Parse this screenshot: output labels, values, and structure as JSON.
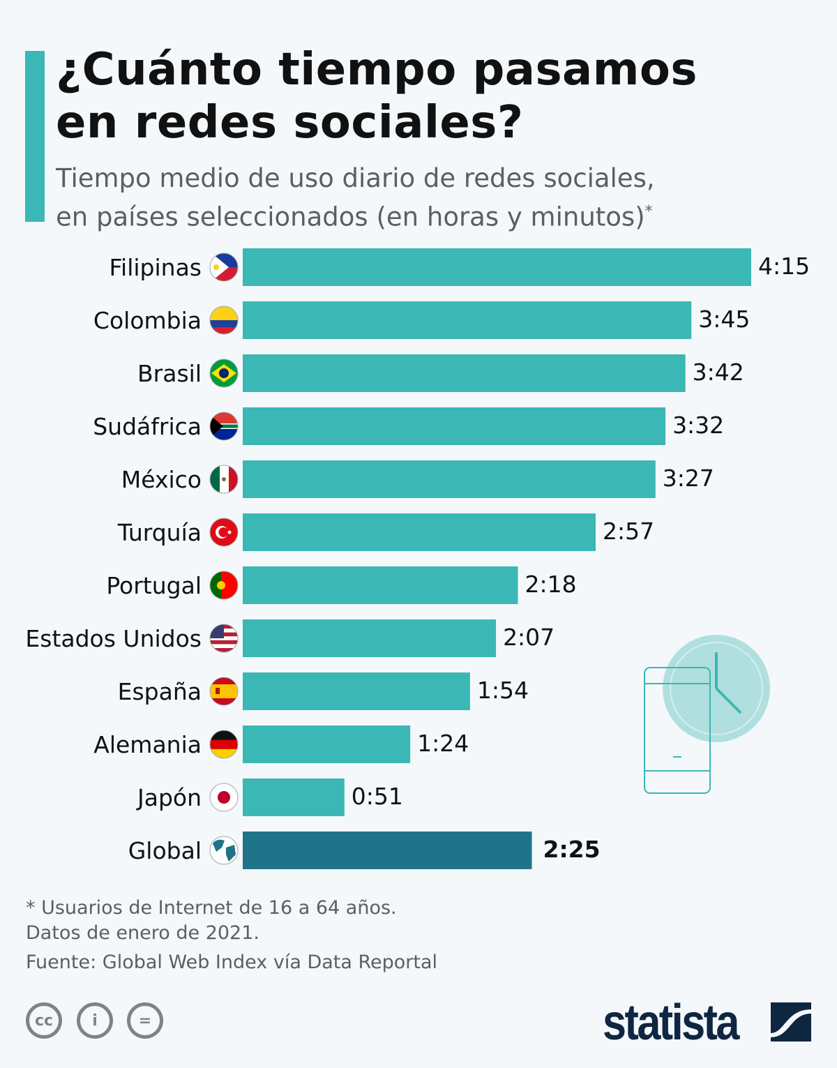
{
  "header": {
    "title_line1": "¿Cuánto tiempo pasamos",
    "title_line2": "en redes sociales?",
    "subtitle_line1": "Tiempo medio de uso diario de redes sociales,",
    "subtitle_line2": "en países seleccionados (en horas y minutos)",
    "subtitle_mark": "*"
  },
  "chart_data": {
    "type": "bar",
    "orientation": "horizontal",
    "unit": "horas:minutos",
    "categories": [
      "Filipinas",
      "Colombia",
      "Brasil",
      "Sudáfrica",
      "México",
      "Turquía",
      "Portugal",
      "Estados Unidos",
      "España",
      "Alemania",
      "Japón",
      "Global"
    ],
    "labels": [
      "4:15",
      "3:45",
      "3:42",
      "3:32",
      "3:27",
      "2:57",
      "2:18",
      "2:07",
      "1:54",
      "1:24",
      "0:51",
      "2:25"
    ],
    "values_minutes": [
      255,
      225,
      222,
      212,
      207,
      177,
      138,
      127,
      114,
      84,
      51,
      145
    ],
    "flag_icons": [
      "flag-philippines",
      "flag-colombia",
      "flag-brazil",
      "flag-south-africa",
      "flag-mexico",
      "flag-turkey",
      "flag-portugal",
      "flag-usa",
      "flag-spain",
      "flag-germany",
      "flag-japan",
      "globe"
    ],
    "colors": {
      "bar": "#3bb7b5",
      "highlight": "#1f7489"
    }
  },
  "footer": {
    "note1": "* Usuarios de Internet de 16 a 64 años.",
    "note2": "Datos de enero de 2021.",
    "source": "Fuente: Global Web Index vía Data Reportal",
    "cc": "cc",
    "brand": "statista"
  }
}
